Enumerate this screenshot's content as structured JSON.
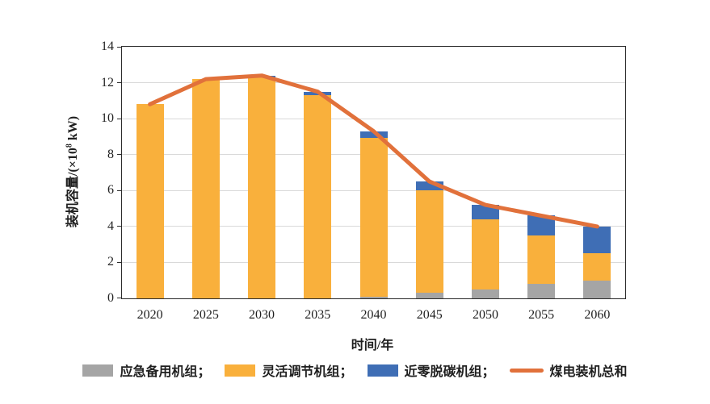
{
  "colors": {
    "background": "#FFFFFF",
    "emergency_gray": "#A5A5A5",
    "flexible_yellow": "#F9B03C",
    "near_zero_blue": "#3F6EB5",
    "total_line_orange": "#E1713B",
    "gridline": "#D9D9D9",
    "axis": "#2B2B2B"
  },
  "chart_data": {
    "type": "bar",
    "subtype": "stacked-bar-with-line",
    "categories": [
      "2020",
      "2025",
      "2030",
      "2035",
      "2040",
      "2045",
      "2050",
      "2055",
      "2060"
    ],
    "series": [
      {
        "name": "应急备用机组",
        "type": "bar",
        "color_key": "emergency_gray",
        "values": [
          0,
          0,
          0,
          0,
          0.1,
          0.3,
          0.5,
          0.8,
          1.0
        ]
      },
      {
        "name": "灵活调节机组",
        "type": "bar",
        "color_key": "flexible_yellow",
        "values": [
          10.8,
          12.2,
          12.3,
          11.3,
          8.85,
          5.7,
          3.9,
          2.7,
          1.5
        ]
      },
      {
        "name": "近零脱碳机组",
        "type": "bar",
        "color_key": "near_zero_blue",
        "values": [
          0,
          0,
          0.1,
          0.2,
          0.35,
          0.5,
          0.8,
          1.1,
          1.5
        ]
      },
      {
        "name": "煤电装机总和",
        "type": "line",
        "color_key": "total_line_orange",
        "values": [
          10.8,
          12.2,
          12.4,
          11.5,
          9.3,
          6.5,
          5.2,
          4.6,
          4.0
        ]
      }
    ],
    "xlabel": "时间/年",
    "ylabel": "装机容量/(×10⁸ kW)",
    "ylabel_parts": {
      "prefix": "装机容量/(×10",
      "sup": "8",
      "suffix": " kW)"
    },
    "ylim": [
      0,
      14
    ],
    "yticks": [
      0,
      2,
      4,
      6,
      8,
      10,
      12,
      14
    ],
    "grid": true,
    "legend_position": "bottom"
  },
  "legend": {
    "items": [
      {
        "label": "应急备用机组；",
        "swatch": "box",
        "color_key": "emergency_gray"
      },
      {
        "label": "灵活调节机组；",
        "swatch": "box",
        "color_key": "flexible_yellow"
      },
      {
        "label": "近零脱碳机组；",
        "swatch": "box",
        "color_key": "near_zero_blue"
      },
      {
        "label": "煤电装机总和",
        "swatch": "line",
        "color_key": "total_line_orange"
      }
    ]
  }
}
